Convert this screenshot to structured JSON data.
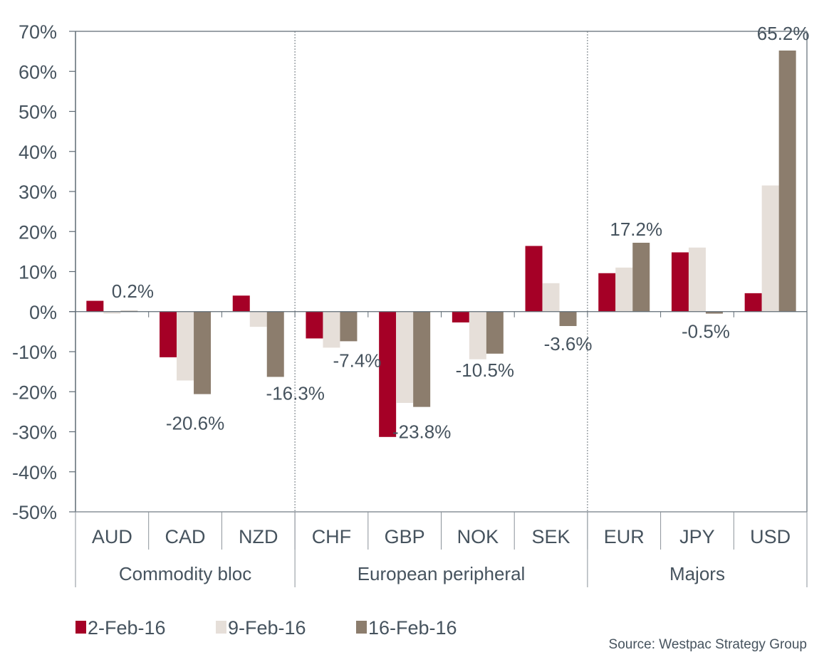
{
  "chart_data": {
    "type": "bar",
    "title": "",
    "xlabel": "",
    "ylabel": "",
    "ylim": [
      -50,
      70
    ],
    "yticks": [
      70,
      60,
      50,
      40,
      30,
      20,
      10,
      0,
      -10,
      -20,
      -30,
      -40,
      -50
    ],
    "ytick_labels": [
      "70%",
      "60%",
      "50%",
      "40%",
      "30%",
      "20%",
      "10%",
      "0%",
      "-10%",
      "-20%",
      "-30%",
      "-40%",
      "-50%"
    ],
    "grid": false,
    "categories": [
      "AUD",
      "CAD",
      "NZD",
      "CHF",
      "GBP",
      "NOK",
      "SEK",
      "EUR",
      "JPY",
      "USD"
    ],
    "groups": [
      {
        "label": "Commodity bloc",
        "categories": [
          "AUD",
          "CAD",
          "NZD"
        ]
      },
      {
        "label": "European peripheral",
        "categories": [
          "CHF",
          "GBP",
          "NOK",
          "SEK"
        ]
      },
      {
        "label": "Majors",
        "categories": [
          "EUR",
          "JPY",
          "USD"
        ]
      }
    ],
    "series": [
      {
        "name": "2-Feb-16",
        "color": "#a50026",
        "values": [
          2.7,
          -11.4,
          4.0,
          -6.7,
          -31.3,
          -2.7,
          16.4,
          9.6,
          14.8,
          4.6
        ]
      },
      {
        "name": "9-Feb-16",
        "color": "#e6dfd9",
        "values": [
          -0.5,
          -17.2,
          -3.8,
          -9.0,
          -22.8,
          -11.9,
          7.1,
          11.0,
          16.0,
          31.5
        ]
      },
      {
        "name": "16-Feb-16",
        "color": "#8c7d6d",
        "values": [
          0.2,
          -20.6,
          -16.3,
          -7.4,
          -23.8,
          -10.5,
          -3.6,
          17.2,
          -0.5,
          65.2
        ]
      }
    ],
    "data_labels": [
      {
        "category": "AUD",
        "series": "16-Feb-16",
        "text": "0.2%"
      },
      {
        "category": "CAD",
        "series": "16-Feb-16",
        "text": "-20.6%"
      },
      {
        "category": "NZD",
        "series": "16-Feb-16",
        "text": "-16.3%"
      },
      {
        "category": "CHF",
        "series": "16-Feb-16",
        "text": "-7.4%"
      },
      {
        "category": "GBP",
        "series": "16-Feb-16",
        "text": "-23.8%"
      },
      {
        "category": "NOK",
        "series": "16-Feb-16",
        "text": "-10.5%"
      },
      {
        "category": "SEK",
        "series": "16-Feb-16",
        "text": "-3.6%"
      },
      {
        "category": "EUR",
        "series": "16-Feb-16",
        "text": "17.2%"
      },
      {
        "category": "JPY",
        "series": "16-Feb-16",
        "text": "-0.5%"
      },
      {
        "category": "USD",
        "series": "16-Feb-16",
        "text": "65.2%"
      }
    ],
    "legend": {
      "placement": "bottom-left",
      "entries": [
        "2-Feb-16",
        "9-Feb-16",
        "16-Feb-16"
      ]
    },
    "source": "Source: Westpac Strategy Group"
  }
}
